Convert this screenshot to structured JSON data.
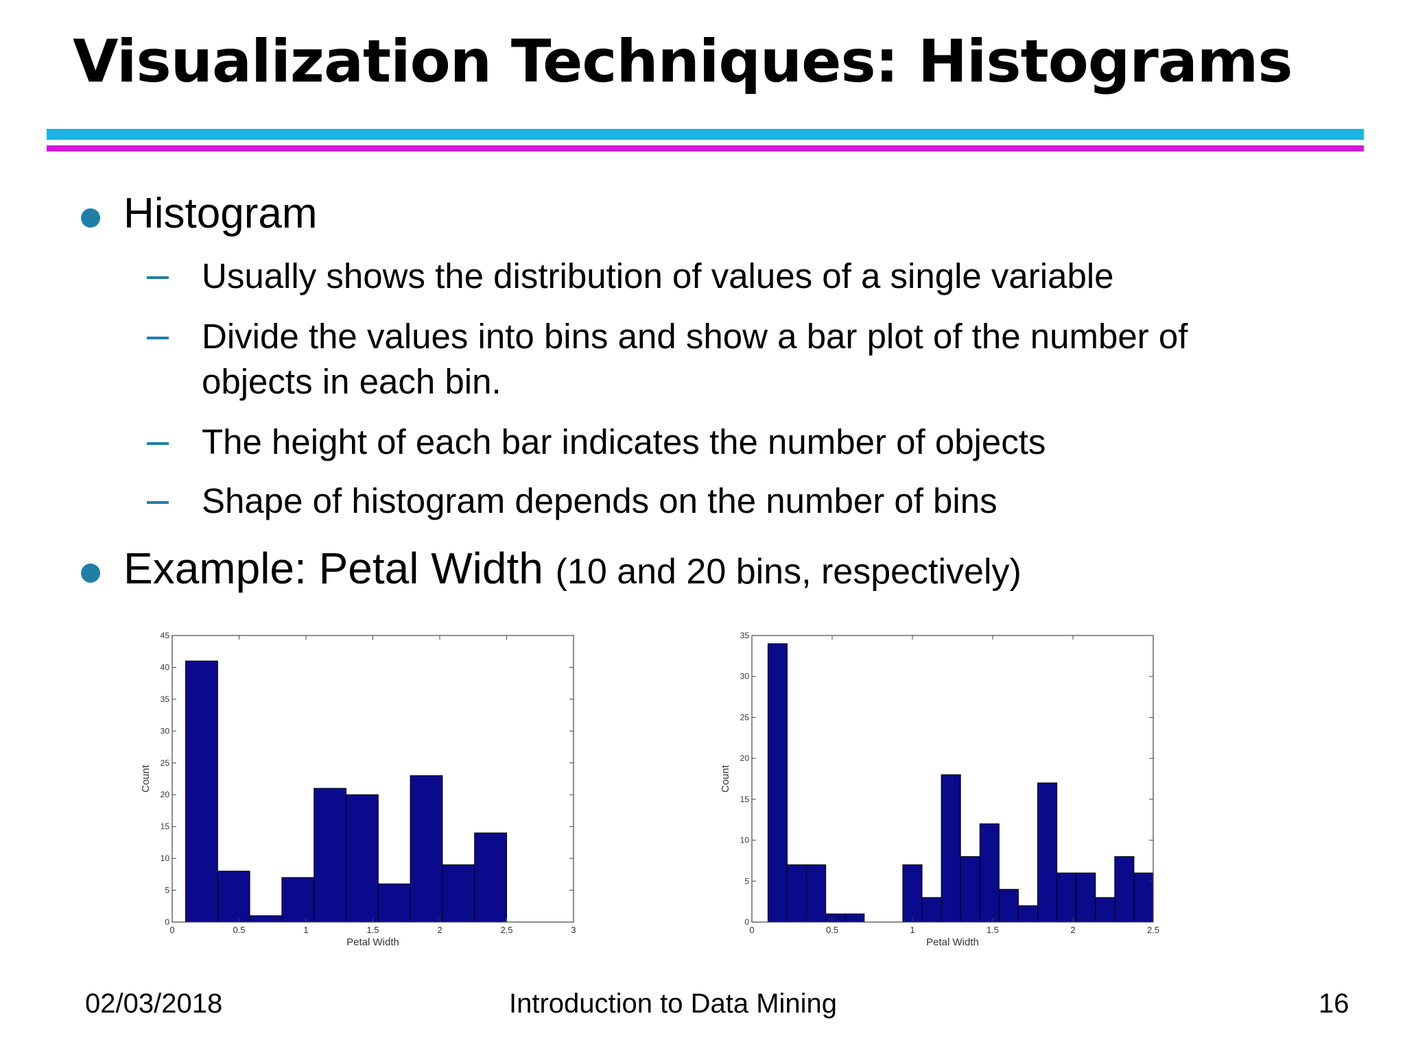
{
  "slide": {
    "title": "Visualization Techniques: Histograms",
    "bullets": [
      {
        "text": "Histogram",
        "sub": [
          "Usually shows the distribution of values of a single variable",
          "Divide the values into bins and show a bar plot of the number of",
          "objects in each bin.",
          "The height of each bar indicates the number of objects",
          "Shape of histogram depends on the number of bins"
        ]
      },
      {
        "text": "Example: Petal Width",
        "note": "(10 and 20 bins, respectively)"
      }
    ]
  },
  "colors": {
    "accent_cyan": "#19b6e3",
    "accent_magenta": "#d21ad6",
    "bullet": "#1f7fa6",
    "bar": "#0a0a8c"
  },
  "chart_data": [
    {
      "type": "bar",
      "bins": 10,
      "bin_edges": [
        0.1,
        0.34,
        0.58,
        0.82,
        1.06,
        1.3,
        1.54,
        1.78,
        2.02,
        2.26,
        2.5
      ],
      "values": [
        41,
        8,
        1,
        7,
        21,
        20,
        6,
        23,
        9,
        14
      ],
      "xlabel": "Petal Width",
      "ylabel": "Count",
      "xlim": [
        0,
        3
      ],
      "ylim": [
        0,
        45
      ],
      "xticks": [
        "0",
        "0.5",
        "1",
        "1.5",
        "2",
        "2.5",
        "3"
      ],
      "yticks": [
        "0",
        "5",
        "10",
        "15",
        "20",
        "25",
        "30",
        "35",
        "40",
        "45"
      ],
      "grid": false
    },
    {
      "type": "bar",
      "bins": 20,
      "bin_edges": [
        0.1,
        0.22,
        0.34,
        0.46,
        0.58,
        0.7,
        0.82,
        0.94,
        1.06,
        1.18,
        1.3,
        1.42,
        1.54,
        1.66,
        1.78,
        1.9,
        2.02,
        2.14,
        2.26,
        2.38,
        2.5
      ],
      "values": [
        34,
        7,
        7,
        1,
        1,
        0,
        0,
        7,
        3,
        18,
        8,
        12,
        4,
        2,
        17,
        6,
        6,
        3,
        8,
        6
      ],
      "xlabel": "Petal Width",
      "ylabel": "Count",
      "xlim": [
        0,
        2.5
      ],
      "ylim": [
        0,
        35
      ],
      "xticks": [
        "0",
        "0.5",
        "1",
        "1.5",
        "2",
        "2.5"
      ],
      "yticks": [
        "0",
        "5",
        "10",
        "15",
        "20",
        "25",
        "30",
        "35"
      ],
      "grid": false
    }
  ],
  "footer": {
    "date": "02/03/2018",
    "course": "Introduction to Data Mining",
    "page": "16"
  }
}
